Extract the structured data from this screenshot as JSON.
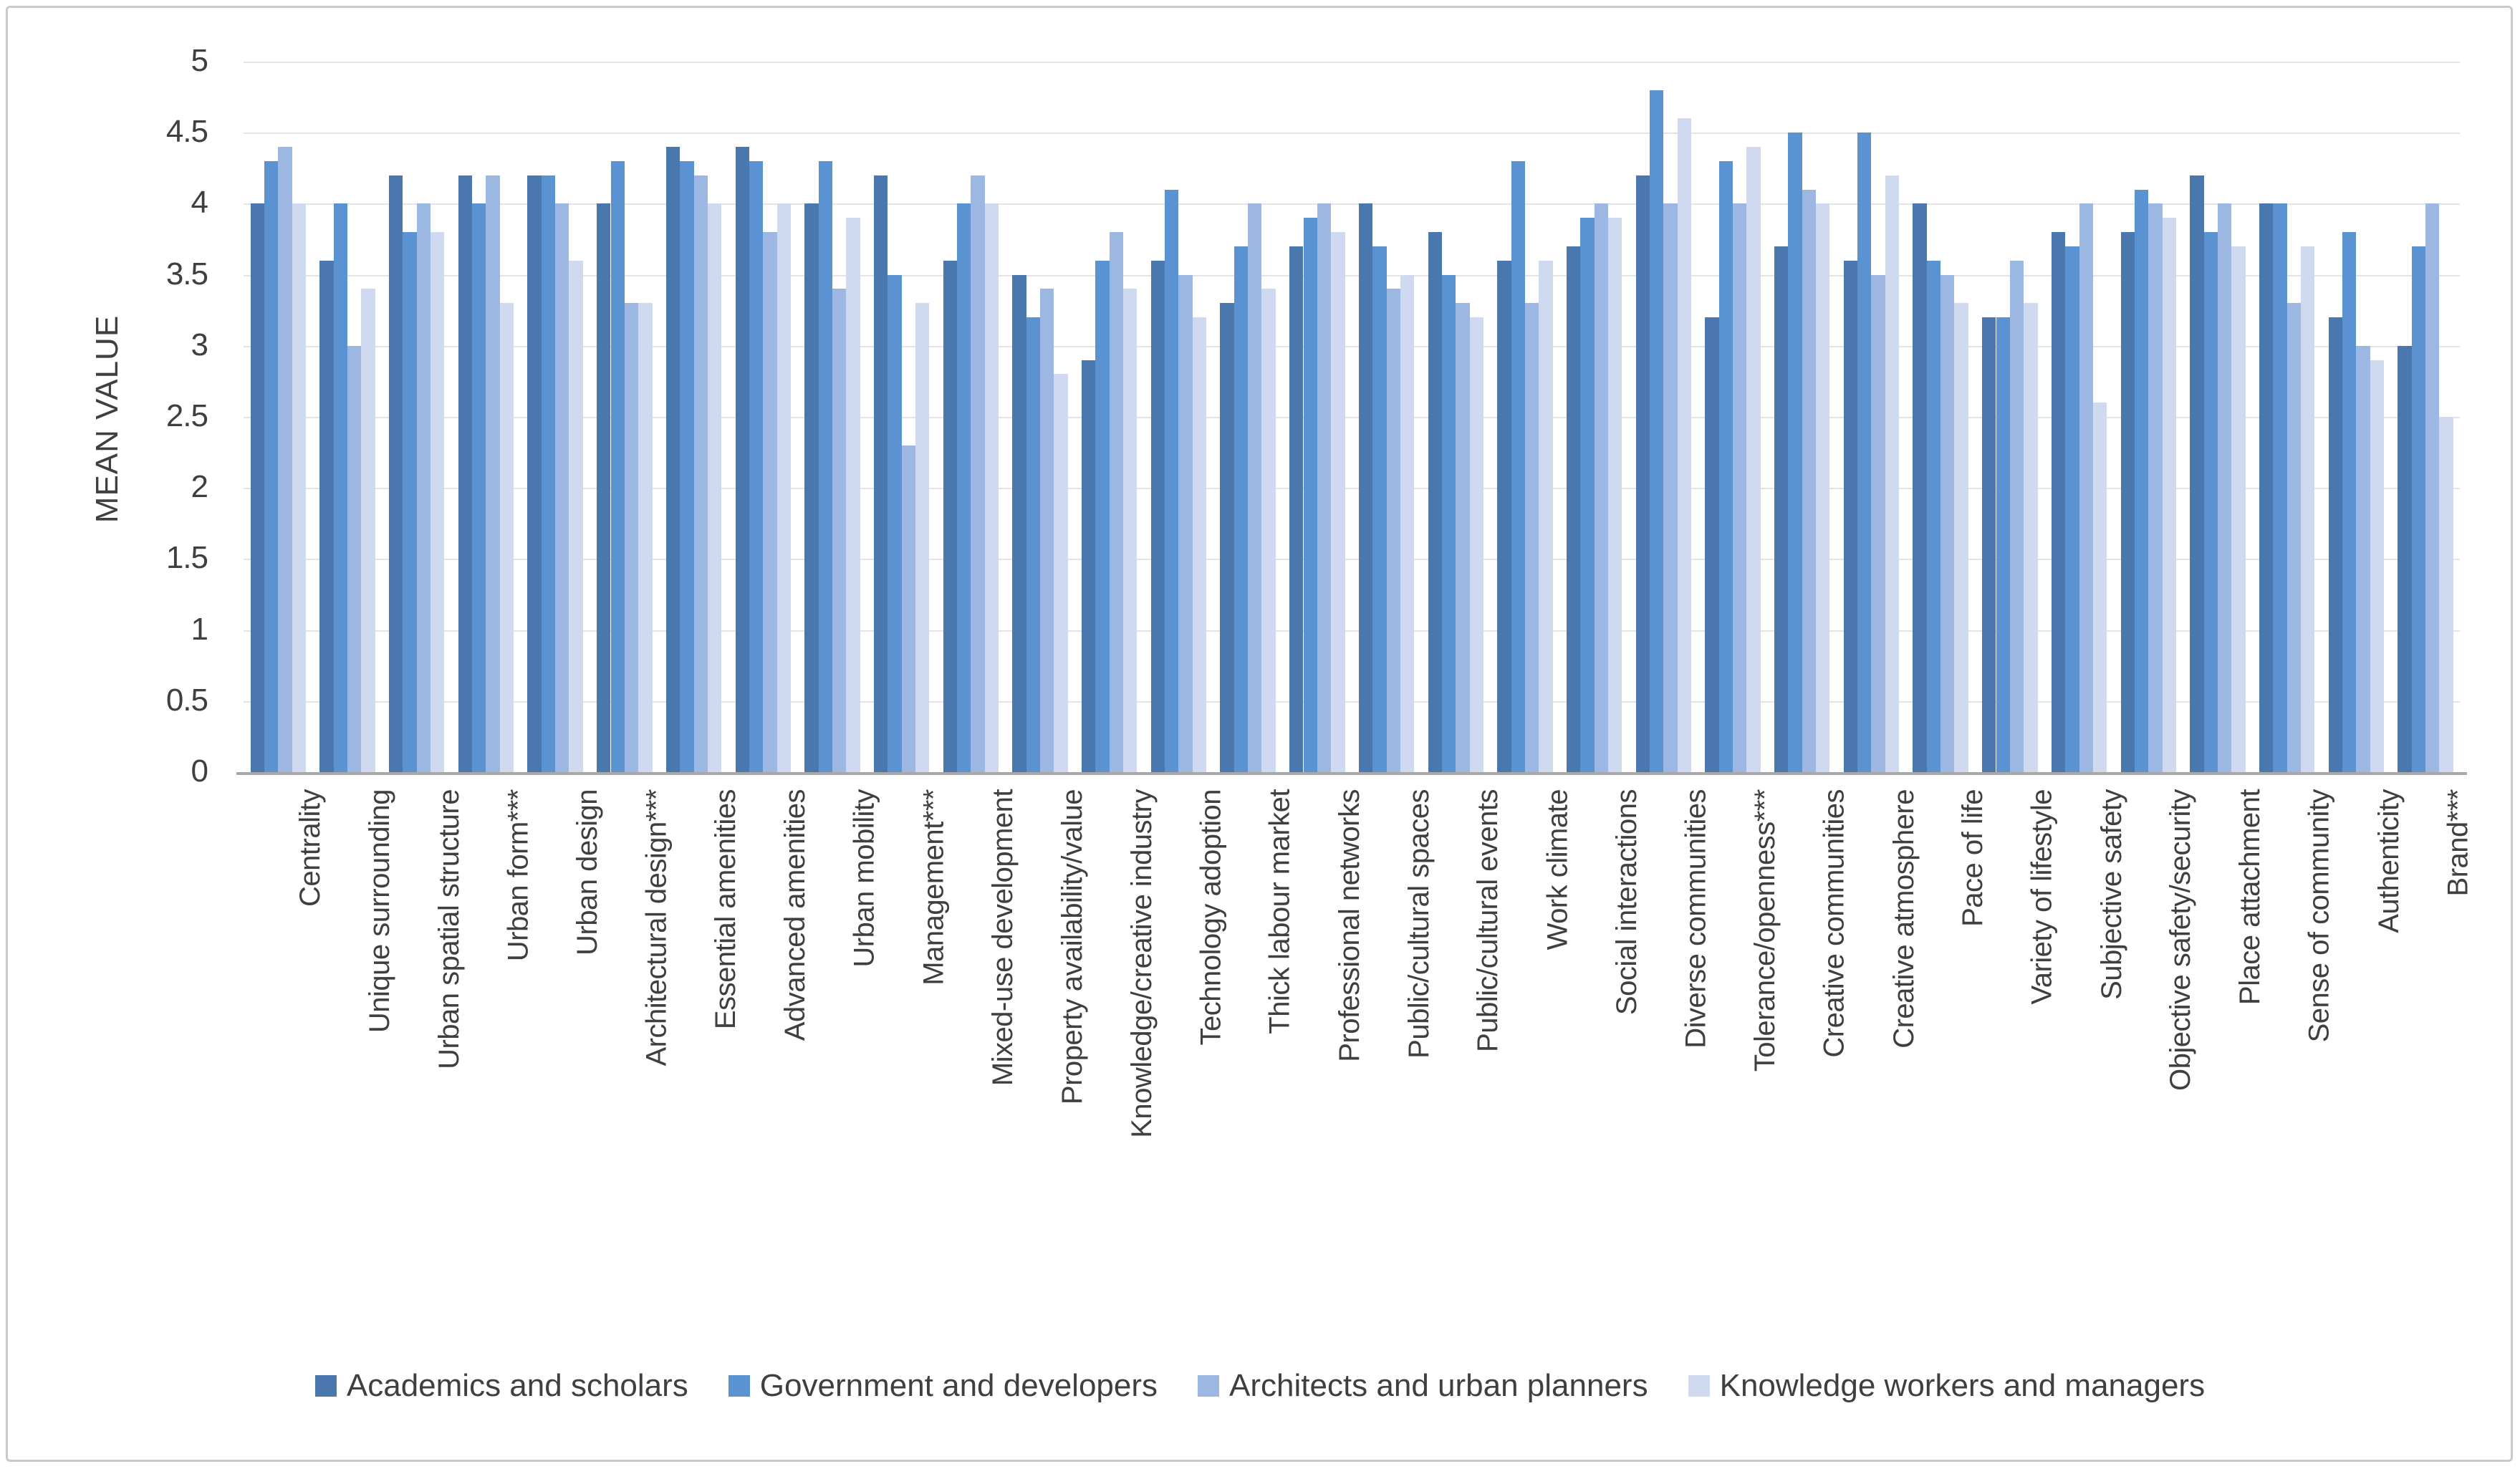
{
  "chart_data": {
    "type": "bar",
    "title": "",
    "xlabel": "",
    "ylabel": "MEAN VALUE",
    "ylim": [
      0,
      5
    ],
    "ytick_step": 0.5,
    "ytick_labels": [
      "5",
      "4.5",
      "4",
      "3.5",
      "3",
      "2.5",
      "2",
      "1.5",
      "1",
      "0.5",
      "0"
    ],
    "grid": true,
    "legend_position": "bottom",
    "categories": [
      "Centrality",
      "Unique surrounding",
      "Urban spatial structure",
      "Urban form***",
      "Urban design",
      "Architectural design***",
      "Essential amenities",
      "Advanced amenities",
      "Urban mobility",
      "Management***",
      "Mixed-use development",
      "Property availability/value",
      "Knowledge/creative industry",
      "Technology adoption",
      "Thick labour market",
      "Professional networks",
      "Public/cultural spaces",
      "Public/cultural events",
      "Work climate",
      "Social interactions",
      "Diverse communities",
      "Tolerance/openness***",
      "Creative communities",
      "Creative atmosphere",
      "Pace of life",
      "Variety of lifestyle",
      "Subjective safety",
      "Objective safety/security",
      "Place attachment",
      "Sense of community",
      "Authenticity",
      "Brand***"
    ],
    "series": [
      {
        "name": "Academics and scholars",
        "color": "#4a77ad",
        "values": [
          4.0,
          3.6,
          4.2,
          4.2,
          4.2,
          4.0,
          4.4,
          4.4,
          4.0,
          4.2,
          3.6,
          3.5,
          2.9,
          3.6,
          3.3,
          3.7,
          4.0,
          3.8,
          3.6,
          3.7,
          4.2,
          3.2,
          3.7,
          3.6,
          4.0,
          3.2,
          3.8,
          3.8,
          4.2,
          4.0,
          3.2,
          3.0
        ]
      },
      {
        "name": "Government and developers",
        "color": "#5b92d2",
        "values": [
          4.3,
          4.0,
          3.8,
          4.0,
          4.2,
          4.3,
          4.3,
          4.3,
          4.3,
          3.5,
          4.0,
          3.2,
          3.6,
          4.1,
          3.7,
          3.9,
          3.7,
          3.5,
          4.3,
          3.9,
          4.8,
          4.3,
          4.5,
          4.5,
          3.6,
          3.2,
          3.7,
          4.1,
          3.8,
          4.0,
          3.8,
          3.7
        ]
      },
      {
        "name": "Architects and urban planners",
        "color": "#9bb7e2",
        "values": [
          4.4,
          3.0,
          4.0,
          4.2,
          4.0,
          3.3,
          4.2,
          3.8,
          3.4,
          2.3,
          4.2,
          3.4,
          3.8,
          3.5,
          4.0,
          4.0,
          3.4,
          3.3,
          3.3,
          4.0,
          4.0,
          4.0,
          4.1,
          3.5,
          3.5,
          3.6,
          4.0,
          4.0,
          4.0,
          3.3,
          3.0,
          4.0
        ]
      },
      {
        "name": "Knowledge workers and managers",
        "color": "#cfdaf0",
        "values": [
          4.0,
          3.4,
          3.8,
          3.3,
          3.6,
          3.3,
          4.0,
          4.0,
          3.9,
          3.3,
          4.0,
          2.8,
          3.4,
          3.2,
          3.4,
          3.8,
          3.5,
          3.2,
          3.6,
          3.9,
          4.6,
          4.4,
          4.0,
          4.2,
          3.3,
          3.3,
          2.6,
          3.9,
          3.7,
          3.7,
          2.9,
          2.5
        ]
      }
    ]
  },
  "colors": {
    "grid": "#e4e4e4",
    "axis": "#a8a8a8",
    "text": "#3f3f3f",
    "frame_border": "#c9c9c9",
    "background": "#ffffff"
  },
  "layout_values": {
    "note": "geometry only in script; all visible text/data above"
  }
}
